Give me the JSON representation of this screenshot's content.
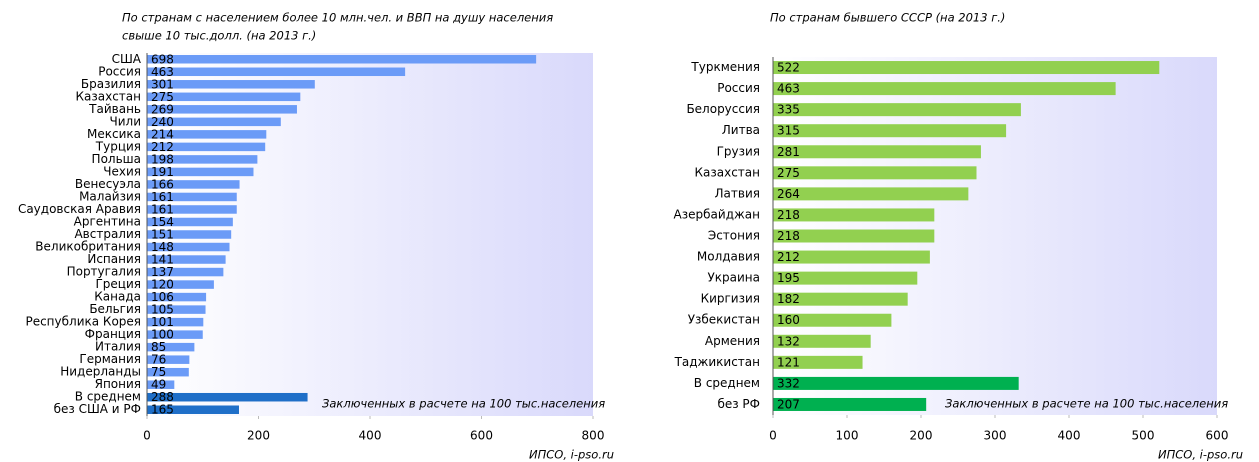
{
  "chart_data": [
    {
      "type": "bar",
      "orientation": "horizontal",
      "title": [
        "По странам с населением более 10 млн.чел. и ВВП на душу населения",
        "свыше 10 тыс.долл. (на 2013 г.)"
      ],
      "categories": [
        "США",
        "Россия",
        "Бразилия",
        "Казахстан",
        "Тайвань",
        "Чили",
        "Мексика",
        "Турция",
        "Польша",
        "Чехия",
        "Венесуэла",
        "Малайзия",
        "Саудовская Аравия",
        "Аргентина",
        "Австралия",
        "Великобритания",
        "Испания",
        "Португалия",
        "Греция",
        "Канада",
        "Бельгия",
        "Республика Корея",
        "Франция",
        "Италия",
        "Германия",
        "Нидерланды",
        "Япония",
        "В среднем",
        "без США и РФ"
      ],
      "values": [
        698,
        463,
        301,
        275,
        269,
        240,
        214,
        212,
        198,
        191,
        166,
        161,
        161,
        154,
        151,
        148,
        141,
        137,
        120,
        106,
        105,
        101,
        100,
        85,
        76,
        75,
        49,
        288,
        165
      ],
      "colors": [
        "#6b9bf7",
        "#6b9bf7",
        "#6b9bf7",
        "#6b9bf7",
        "#6b9bf7",
        "#6b9bf7",
        "#6b9bf7",
        "#6b9bf7",
        "#6b9bf7",
        "#6b9bf7",
        "#6b9bf7",
        "#6b9bf7",
        "#6b9bf7",
        "#6b9bf7",
        "#6b9bf7",
        "#6b9bf7",
        "#6b9bf7",
        "#6b9bf7",
        "#6b9bf7",
        "#6b9bf7",
        "#6b9bf7",
        "#6b9bf7",
        "#6b9bf7",
        "#6b9bf7",
        "#6b9bf7",
        "#6b9bf7",
        "#6b9bf7",
        "#1f6fc8",
        "#1f6fc8"
      ],
      "xlim": [
        0,
        800
      ],
      "xticks": [
        0,
        200,
        400,
        600,
        800
      ],
      "annotation": "Заключенных в расчете на 100 тыс.населения",
      "source": "ИПСО, i-pso.ru"
    },
    {
      "type": "bar",
      "orientation": "horizontal",
      "title": [
        "По странам бывшего СССР (на 2013 г.)"
      ],
      "categories": [
        "Туркмения",
        "Россия",
        "Белоруссия",
        "Литва",
        "Грузия",
        "Казахстан",
        "Латвия",
        "Азербайджан",
        "Эстония",
        "Молдавия",
        "Украина",
        "Киргизия",
        "Узбекистан",
        "Армения",
        "Таджикистан",
        "В среднем",
        "без РФ"
      ],
      "values": [
        522,
        463,
        335,
        315,
        281,
        275,
        264,
        218,
        218,
        212,
        195,
        182,
        160,
        132,
        121,
        332,
        207
      ],
      "colors": [
        "#92d050",
        "#92d050",
        "#92d050",
        "#92d050",
        "#92d050",
        "#92d050",
        "#92d050",
        "#92d050",
        "#92d050",
        "#92d050",
        "#92d050",
        "#92d050",
        "#92d050",
        "#92d050",
        "#92d050",
        "#00b050",
        "#00b050"
      ],
      "xlim": [
        0,
        600
      ],
      "xticks": [
        0,
        100,
        200,
        300,
        400,
        500,
        600
      ],
      "annotation": "Заключенных в расчете на 100 тыс.населения",
      "source": "ИПСО, i-pso.ru"
    }
  ]
}
